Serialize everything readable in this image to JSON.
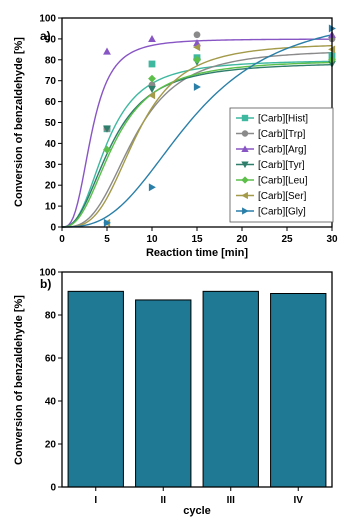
{
  "chart_data": [
    {
      "type": "line",
      "panel_label": "a)",
      "xlabel": "Reaction time [min]",
      "ylabel": "Conversion of benzaldehyde [%]",
      "xlim": [
        0,
        30
      ],
      "ylim": [
        0,
        100
      ],
      "xticks": [
        "0",
        "5",
        "10",
        "15",
        "20",
        "25",
        "30"
      ],
      "yticks": [
        "0",
        "10",
        "20",
        "30",
        "40",
        "50",
        "60",
        "70",
        "80",
        "90",
        "100"
      ],
      "legend_position": "center-right",
      "series": [
        {
          "name": "[Carb][Hist]",
          "color": "#3fb8a0",
          "marker": "square",
          "points": [
            [
              5,
              47
            ],
            [
              10,
              78
            ],
            [
              15,
              81
            ],
            [
              30,
              82
            ]
          ]
        },
        {
          "name": "[Carb][Trp]",
          "color": "#8a8a8a",
          "marker": "circle",
          "points": [
            [
              5,
              47
            ],
            [
              10,
              68
            ],
            [
              15,
              92
            ],
            [
              30,
              90
            ]
          ]
        },
        {
          "name": "[Carb][Arg]",
          "color": "#8855c4",
          "marker": "triangle-up",
          "points": [
            [
              5,
              84
            ],
            [
              10,
              90
            ],
            [
              15,
              88
            ],
            [
              30,
              92
            ]
          ]
        },
        {
          "name": "[Carb][Tyr]",
          "color": "#2f7d6b",
          "marker": "triangle-down",
          "points": [
            [
              5,
              47
            ],
            [
              10,
              66
            ],
            [
              15,
              79
            ],
            [
              30,
              78
            ]
          ]
        },
        {
          "name": "[Carb][Leu]",
          "color": "#5cbf4a",
          "marker": "diamond",
          "points": [
            [
              5,
              37
            ],
            [
              10,
              71
            ],
            [
              15,
              80
            ],
            [
              30,
              80
            ]
          ]
        },
        {
          "name": "[Carb][Ser]",
          "color": "#a39a4a",
          "marker": "triangle-left",
          "points": [
            [
              5,
              2
            ],
            [
              10,
              63
            ],
            [
              15,
              86
            ],
            [
              30,
              85
            ]
          ]
        },
        {
          "name": "[Carb][Gly]",
          "color": "#2a7fa8",
          "marker": "triangle-right",
          "points": [
            [
              5,
              2
            ],
            [
              10,
              19
            ],
            [
              15,
              67
            ],
            [
              30,
              95
            ]
          ]
        }
      ],
      "fits": [
        {
          "series": "[Carb][Hist]",
          "max": 80,
          "t50": 5.0,
          "n": 2.6
        },
        {
          "series": "[Carb][Trp]",
          "max": 85,
          "t50": 8.0,
          "n": 3.0
        },
        {
          "series": "[Carb][Arg]",
          "max": 90,
          "t50": 3.3,
          "n": 3.0
        },
        {
          "series": "[Carb][Tyr]",
          "max": 79,
          "t50": 5.5,
          "n": 2.4
        },
        {
          "series": "[Carb][Leu]",
          "max": 80,
          "t50": 5.8,
          "n": 2.5
        },
        {
          "series": "[Carb][Ser]",
          "max": 88,
          "t50": 8.3,
          "n": 3.3
        },
        {
          "series": "[Carb][Gly]",
          "max": 104,
          "t50": 14.5,
          "n": 2.8
        }
      ]
    },
    {
      "type": "bar",
      "panel_label": "b)",
      "xlabel": "cycle",
      "ylabel": "Conversion of benzaldehyde [%]",
      "ylim": [
        0,
        100
      ],
      "yticks": [
        "0",
        "20",
        "40",
        "60",
        "80",
        "100"
      ],
      "categories": [
        "I",
        "II",
        "III",
        "IV"
      ],
      "values": [
        91,
        87,
        91,
        90
      ],
      "bar_color": "#1f7894"
    }
  ]
}
